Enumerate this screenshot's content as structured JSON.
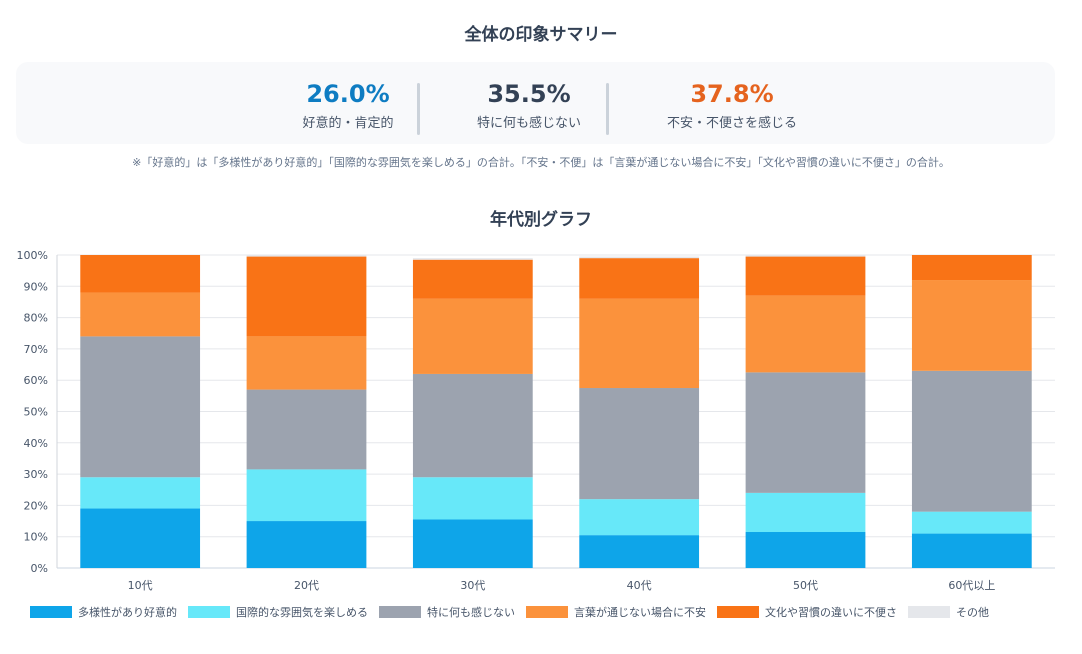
{
  "summary": {
    "title": "全体の印象サマリー",
    "stats": [
      {
        "value": "26.0%",
        "label": "好意的・肯定的"
      },
      {
        "value": "35.5%",
        "label": "特に何も感じない"
      },
      {
        "value": "37.8%",
        "label": "不安・不便さを感じる"
      }
    ],
    "note": "※「好意的」は「多様性があり好意的」「国際的な雰囲気を楽しめる」の合計。「不安・不便」は「言葉が通じない場合に不安」「文化や習慣の違いに不便さ」の合計。"
  },
  "chart_data": {
    "type": "bar",
    "stacked": true,
    "title": "年代別グラフ",
    "categories": [
      "10代",
      "20代",
      "30代",
      "40代",
      "50代",
      "60代以上"
    ],
    "ylim": [
      0,
      100
    ],
    "yticks": [
      "0%",
      "10%",
      "20%",
      "30%",
      "40%",
      "50%",
      "60%",
      "70%",
      "80%",
      "90%",
      "100%"
    ],
    "grid": true,
    "legend_position": "bottom",
    "series": [
      {
        "name": "多様性があり好意的",
        "color": "#0ea5e9",
        "values": [
          19,
          15,
          15.5,
          10.5,
          11.5,
          11
        ]
      },
      {
        "name": "国際的な雰囲気を楽しめる",
        "color": "#67e8f9",
        "values": [
          10,
          16.5,
          13.5,
          11.5,
          12.5,
          7
        ]
      },
      {
        "name": "特に何も感じない",
        "color": "#9ca3af",
        "values": [
          45,
          25.5,
          33,
          35.5,
          38.5,
          45
        ]
      },
      {
        "name": "言葉が通じない場合に不安",
        "color": "#fb923c",
        "values": [
          14,
          17,
          24,
          28.5,
          24.5,
          29
        ]
      },
      {
        "name": "文化や習慣の違いに不便さ",
        "color": "#f97316",
        "values": [
          12,
          25.5,
          12.5,
          13,
          12.5,
          8
        ]
      },
      {
        "name": "その他",
        "color": "#e5e7eb",
        "values": [
          0,
          0.5,
          0.5,
          0.5,
          0.5,
          0
        ]
      }
    ]
  }
}
